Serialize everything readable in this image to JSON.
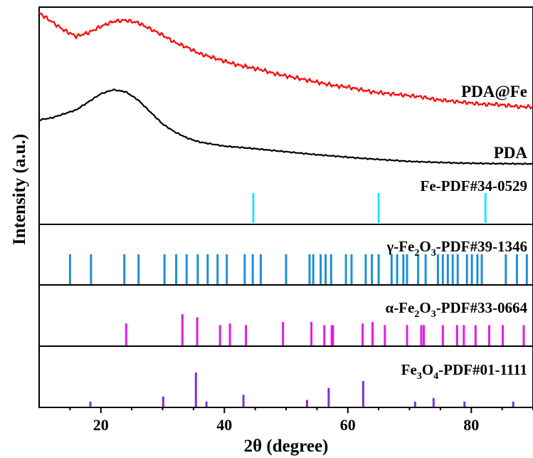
{
  "chart_data": {
    "type": "line",
    "xlabel": "2θ (degree)",
    "ylabel": "Intensity (a.u.)",
    "xlim": [
      10,
      90
    ],
    "x_ticks": [
      20,
      40,
      60,
      80
    ],
    "grid": false,
    "series": [
      {
        "name": "PDA@Fe",
        "color": "#ff0000",
        "x": [
          10,
          12,
          14,
          16,
          18,
          20,
          22,
          24,
          26,
          28,
          30,
          32,
          34,
          36,
          38,
          40,
          42,
          44,
          46,
          48,
          50,
          52,
          54,
          56,
          58,
          60,
          62,
          64,
          66,
          68,
          70,
          72,
          74,
          76,
          78,
          80,
          82,
          84,
          86,
          88,
          90
        ],
        "y": [
          100,
          93,
          86,
          81,
          84,
          89,
          93,
          94,
          92,
          87,
          82,
          76,
          72,
          67,
          64,
          61,
          58,
          56,
          54,
          51,
          49,
          47,
          45,
          43,
          41,
          40,
          38,
          36,
          35,
          34,
          33,
          32,
          30,
          29,
          28,
          27,
          26,
          26,
          25,
          24,
          24
        ]
      },
      {
        "name": "PDA",
        "color": "#000000",
        "x": [
          10,
          12,
          14,
          16,
          18,
          20,
          22,
          24,
          26,
          28,
          30,
          32,
          34,
          36,
          38,
          40,
          42,
          44,
          46,
          48,
          50,
          52,
          54,
          56,
          58,
          60,
          62,
          64,
          66,
          68,
          70,
          72,
          74,
          76,
          78,
          80,
          82,
          84,
          86,
          88,
          90
        ],
        "y": [
          22,
          23,
          25,
          27,
          31,
          35,
          37,
          36,
          32,
          26,
          20,
          16,
          13,
          11,
          10,
          9,
          8.5,
          8,
          7.4,
          6.8,
          6.2,
          5.6,
          5,
          4.5,
          4,
          3.5,
          3,
          2.6,
          2.2,
          1.8,
          1.4,
          1.2,
          1,
          0.8,
          0.6,
          0.5,
          0.4,
          0.3,
          0.3,
          0.2,
          0.2
        ]
      }
    ],
    "references": [
      {
        "name": "Fe-PDF#34-0529",
        "color": "#22e5f0",
        "peaks": [
          [
            44.7,
            100
          ],
          [
            65.0,
            100
          ],
          [
            82.3,
            100
          ]
        ]
      },
      {
        "name": "γ-Fe2O3-PDF#39-1346",
        "label_main": "γ-Fe",
        "label_sub1": "2",
        "label_mid": "O",
        "label_sub2": "3",
        "label_tail": "-PDF#39-1346",
        "color": "#1f8fd8",
        "peaks": [
          [
            15.0,
            100
          ],
          [
            18.4,
            100
          ],
          [
            23.8,
            100
          ],
          [
            26.1,
            100
          ],
          [
            30.3,
            100
          ],
          [
            32.2,
            100
          ],
          [
            33.9,
            100
          ],
          [
            35.7,
            100
          ],
          [
            37.3,
            100
          ],
          [
            38.9,
            100
          ],
          [
            40.4,
            100
          ],
          [
            43.3,
            100
          ],
          [
            44.6,
            100
          ],
          [
            45.9,
            100
          ],
          [
            50.0,
            100
          ],
          [
            53.8,
            100
          ],
          [
            54.4,
            100
          ],
          [
            55.6,
            100
          ],
          [
            56.4,
            100
          ],
          [
            57.3,
            100
          ],
          [
            59.7,
            100
          ],
          [
            60.6,
            100
          ],
          [
            62.9,
            100
          ],
          [
            63.9,
            100
          ],
          [
            65.0,
            100
          ],
          [
            67.1,
            100
          ],
          [
            68.0,
            100
          ],
          [
            69.0,
            100
          ],
          [
            69.6,
            100
          ],
          [
            71.4,
            100
          ],
          [
            72.6,
            100
          ],
          [
            74.6,
            100
          ],
          [
            75.4,
            100
          ],
          [
            76.2,
            100
          ],
          [
            77.0,
            100
          ],
          [
            77.8,
            100
          ],
          [
            79.3,
            100
          ],
          [
            80.1,
            100
          ],
          [
            81.0,
            100
          ],
          [
            81.7,
            100
          ],
          [
            85.6,
            100
          ],
          [
            87.4,
            100
          ],
          [
            89.0,
            100
          ]
        ]
      },
      {
        "name": "α-Fe2O3-PDF#33-0664",
        "label_main": "α-Fe",
        "label_sub1": "2",
        "label_mid": "O",
        "label_sub2": "3",
        "label_tail": "-PDF#33-0664",
        "color": "#e619e6",
        "peaks": [
          [
            24.1,
            70
          ],
          [
            33.2,
            100
          ],
          [
            35.6,
            90
          ],
          [
            39.3,
            65
          ],
          [
            40.9,
            70
          ],
          [
            43.5,
            65
          ],
          [
            49.5,
            75
          ],
          [
            54.1,
            75
          ],
          [
            56.2,
            65
          ],
          [
            57.4,
            65
          ],
          [
            57.6,
            65
          ],
          [
            62.4,
            70
          ],
          [
            64.0,
            75
          ],
          [
            66.0,
            65
          ],
          [
            69.6,
            65
          ],
          [
            71.9,
            65
          ],
          [
            72.3,
            65
          ],
          [
            75.4,
            65
          ],
          [
            77.7,
            65
          ],
          [
            78.8,
            65
          ],
          [
            80.7,
            65
          ],
          [
            82.9,
            65
          ],
          [
            85.1,
            65
          ],
          [
            88.5,
            65
          ]
        ]
      },
      {
        "name": "Fe3O4-PDF#01-1111",
        "label_main": "Fe",
        "label_sub1": "3",
        "label_mid": "O",
        "label_sub2": "4",
        "label_tail": "-PDF#01-1111",
        "color": "#7d2fe0",
        "peaks": [
          [
            18.3,
            15
          ],
          [
            30.1,
            30
          ],
          [
            35.4,
            100
          ],
          [
            37.1,
            15
          ],
          [
            43.1,
            35
          ],
          [
            53.4,
            20
          ],
          [
            56.9,
            55
          ],
          [
            62.5,
            75
          ],
          [
            70.9,
            15
          ],
          [
            73.9,
            25
          ],
          [
            78.9,
            15
          ],
          [
            86.8,
            15
          ]
        ]
      }
    ]
  }
}
